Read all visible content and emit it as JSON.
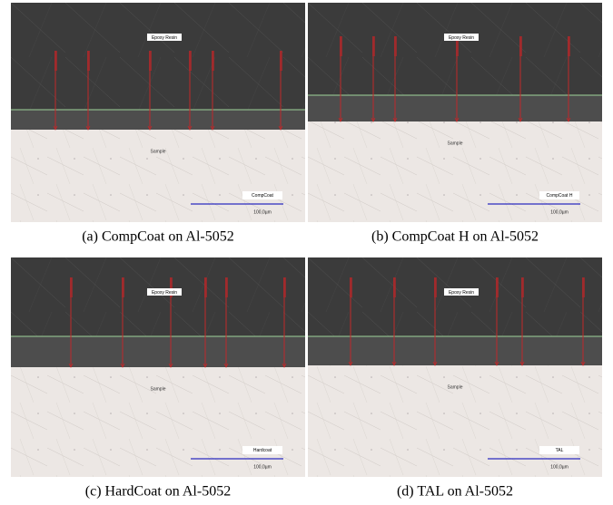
{
  "panels": [
    {
      "caption": "(a) CompCoat on Al-5052",
      "resin_label": "Epoxy Resin",
      "sample_label": "Sample",
      "coating_label": "CompCoat",
      "scale_label": "100,0µm"
    },
    {
      "caption": "(b) CompCoat H on Al-5052",
      "resin_label": "Epoxy Resin",
      "sample_label": "Sample",
      "coating_label": "CompCoat H",
      "scale_label": "100,0µm"
    },
    {
      "caption": "(c) HardCoat on Al-5052",
      "resin_label": "Epoxy Resin",
      "sample_label": "Sample",
      "coating_label": "Hardcoat",
      "scale_label": "100,0µm"
    },
    {
      "caption": "(d) TAL on Al-5052",
      "resin_label": "Epoxy Resin",
      "sample_label": "Sample",
      "coating_label": "TAL",
      "scale_label": "100,0µm"
    }
  ]
}
